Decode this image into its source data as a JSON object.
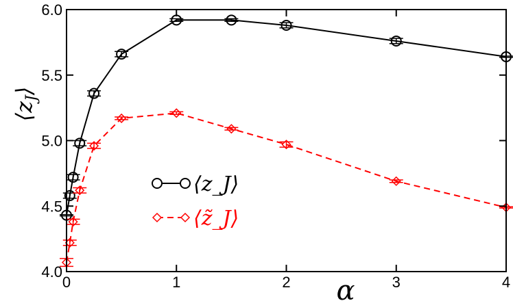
{
  "chart_data": {
    "type": "line",
    "title": "",
    "xlabel": "α",
    "ylabel": "⟨z_J⟩",
    "xlim": [
      0,
      4
    ],
    "ylim": [
      4.0,
      6.0
    ],
    "grid": false,
    "legend_placement": "center-left",
    "x_ticks": [
      {
        "value": 0,
        "label": "0"
      },
      {
        "value": 1,
        "label": "1"
      },
      {
        "value": 2,
        "label": "2"
      },
      {
        "value": 3,
        "label": "3"
      },
      {
        "value": 4,
        "label": "4"
      }
    ],
    "y_ticks": [
      {
        "value": 4.0,
        "label": "4.0"
      },
      {
        "value": 4.5,
        "label": "4.5"
      },
      {
        "value": 5.0,
        "label": "5.0"
      },
      {
        "value": 5.5,
        "label": "5.5"
      },
      {
        "value": 6.0,
        "label": "6.0"
      }
    ],
    "series": [
      {
        "name": "⟨z_J⟩",
        "color": "#000000",
        "line_style": "solid",
        "marker": "circle",
        "x": [
          0.0,
          0.03,
          0.06,
          0.12,
          0.25,
          0.5,
          1.0,
          1.5,
          2.0,
          3.0,
          4.0
        ],
        "y": [
          4.43,
          4.58,
          4.72,
          4.98,
          5.36,
          5.66,
          5.92,
          5.92,
          5.88,
          5.76,
          5.64
        ],
        "err": [
          0.005,
          0.02,
          0.02,
          0.02,
          0.02,
          0.02,
          0.01,
          0.01,
          0.02,
          0.02,
          0.005
        ]
      },
      {
        "name": "⟨z̃_J⟩",
        "color": "#ff0000",
        "line_style": "dashed",
        "marker": "diamond",
        "x": [
          0.0,
          0.03,
          0.06,
          0.12,
          0.25,
          0.5,
          1.0,
          1.5,
          2.0,
          3.0,
          4.0
        ],
        "y": [
          4.07,
          4.22,
          4.38,
          4.62,
          4.96,
          5.17,
          5.21,
          5.09,
          4.97,
          4.69,
          4.49
        ],
        "err": [
          0.03,
          0.02,
          0.02,
          0.02,
          0.02,
          0.01,
          0.01,
          0.01,
          0.02,
          0.01,
          0.005
        ]
      }
    ]
  }
}
